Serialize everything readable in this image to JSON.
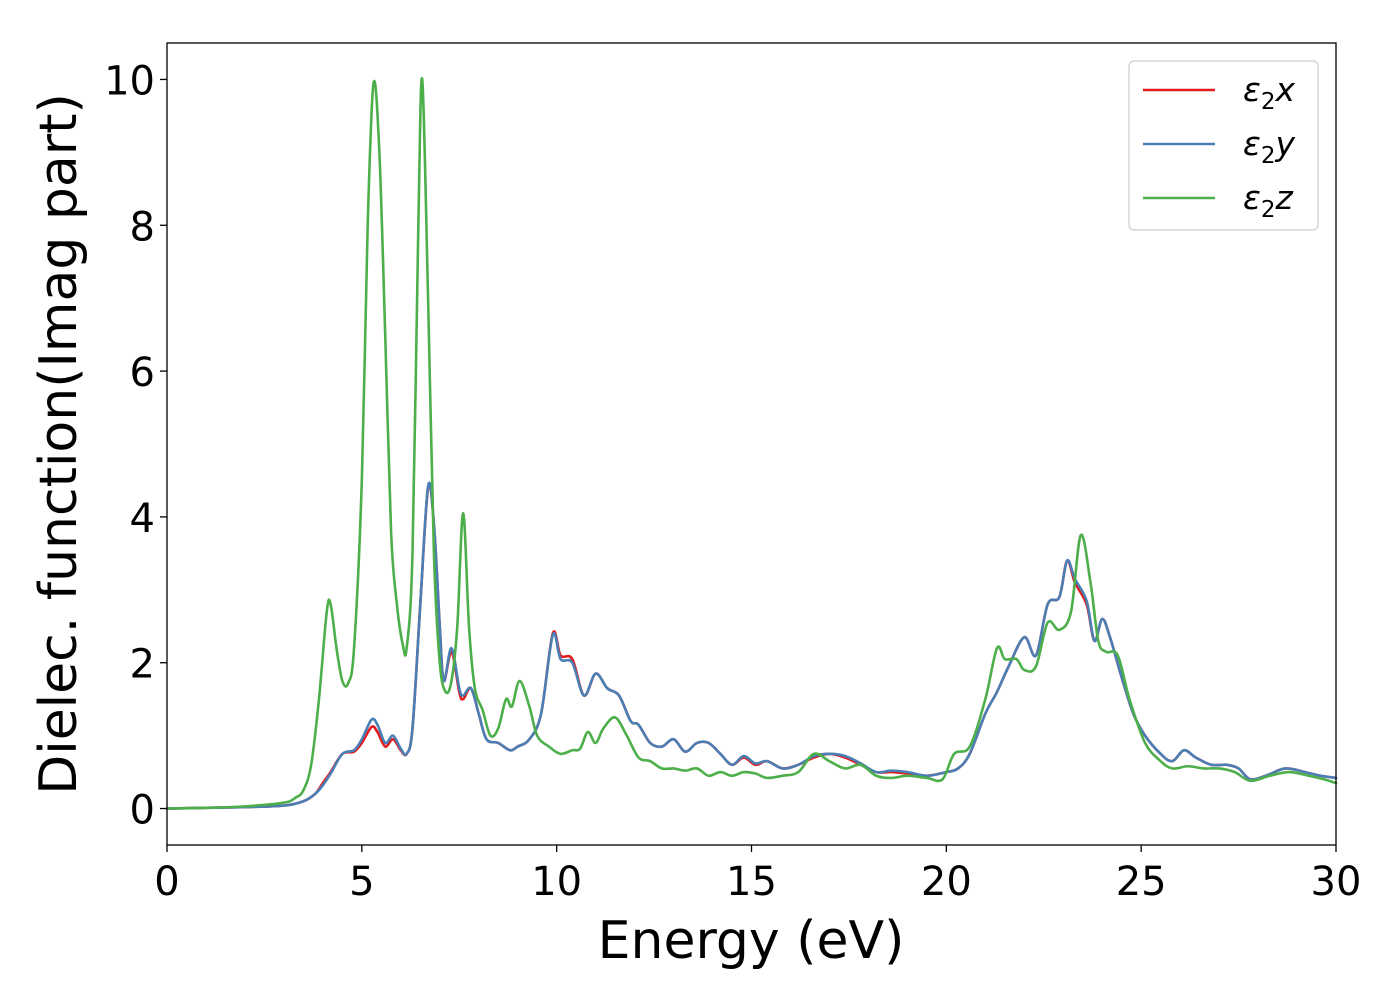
{
  "chart_data": {
    "type": "line",
    "xlabel": "Energy (eV)",
    "ylabel": "Dielec. function(Imag part)",
    "xlim": [
      0,
      30
    ],
    "ylim": [
      -0.5,
      10.5
    ],
    "xticks": [
      "0",
      "5",
      "10",
      "15",
      "20",
      "25",
      "30"
    ],
    "yticks": [
      "0",
      "2",
      "4",
      "6",
      "8",
      "10"
    ],
    "grid": false,
    "legend": "top-right",
    "series": [
      {
        "name": "ε₂x",
        "legend_base": "ε",
        "legend_sub": "2",
        "legend_var": "x",
        "color": "#e41a1c",
        "points": [
          [
            0,
            0
          ],
          [
            1,
            0.01
          ],
          [
            2,
            0.02
          ],
          [
            3,
            0.04
          ],
          [
            3.5,
            0.1
          ],
          [
            3.8,
            0.2
          ],
          [
            4.0,
            0.35
          ],
          [
            4.2,
            0.5
          ],
          [
            4.5,
            0.75
          ],
          [
            4.8,
            0.78
          ],
          [
            5.0,
            0.9
          ],
          [
            5.25,
            1.12
          ],
          [
            5.4,
            1.05
          ],
          [
            5.6,
            0.85
          ],
          [
            5.8,
            0.95
          ],
          [
            6.0,
            0.8
          ],
          [
            6.15,
            0.75
          ],
          [
            6.3,
            1.1
          ],
          [
            6.5,
            2.8
          ],
          [
            6.7,
            4.4
          ],
          [
            6.85,
            3.9
          ],
          [
            7.0,
            2.5
          ],
          [
            7.1,
            1.75
          ],
          [
            7.3,
            2.15
          ],
          [
            7.5,
            1.6
          ],
          [
            7.6,
            1.5
          ],
          [
            7.8,
            1.65
          ],
          [
            8.0,
            1.3
          ],
          [
            8.2,
            0.95
          ],
          [
            8.5,
            0.9
          ],
          [
            8.8,
            0.8
          ],
          [
            9.0,
            0.85
          ],
          [
            9.3,
            0.95
          ],
          [
            9.6,
            1.3
          ],
          [
            9.9,
            2.4
          ],
          [
            10.1,
            2.1
          ],
          [
            10.4,
            2.05
          ],
          [
            10.7,
            1.55
          ],
          [
            11.0,
            1.85
          ],
          [
            11.3,
            1.65
          ],
          [
            11.6,
            1.55
          ],
          [
            11.9,
            1.2
          ],
          [
            12.1,
            1.15
          ],
          [
            12.4,
            0.9
          ],
          [
            12.7,
            0.85
          ],
          [
            13.0,
            0.95
          ],
          [
            13.3,
            0.78
          ],
          [
            13.6,
            0.9
          ],
          [
            13.9,
            0.9
          ],
          [
            14.2,
            0.75
          ],
          [
            14.5,
            0.6
          ],
          [
            14.8,
            0.7
          ],
          [
            15.1,
            0.6
          ],
          [
            15.4,
            0.65
          ],
          [
            15.8,
            0.55
          ],
          [
            16.2,
            0.6
          ],
          [
            16.6,
            0.7
          ],
          [
            17.0,
            0.75
          ],
          [
            17.4,
            0.7
          ],
          [
            17.8,
            0.6
          ],
          [
            18.2,
            0.5
          ],
          [
            18.6,
            0.5
          ],
          [
            19.0,
            0.48
          ],
          [
            19.5,
            0.45
          ],
          [
            20.0,
            0.5
          ],
          [
            20.3,
            0.55
          ],
          [
            20.6,
            0.75
          ],
          [
            21.0,
            1.3
          ],
          [
            21.3,
            1.6
          ],
          [
            21.6,
            1.95
          ],
          [
            22.0,
            2.35
          ],
          [
            22.3,
            2.1
          ],
          [
            22.6,
            2.8
          ],
          [
            22.9,
            2.9
          ],
          [
            23.1,
            3.4
          ],
          [
            23.3,
            3.1
          ],
          [
            23.6,
            2.8
          ],
          [
            23.8,
            2.3
          ],
          [
            24.0,
            2.6
          ],
          [
            24.2,
            2.35
          ],
          [
            24.5,
            1.8
          ],
          [
            24.8,
            1.3
          ],
          [
            25.1,
            1.0
          ],
          [
            25.5,
            0.75
          ],
          [
            25.8,
            0.65
          ],
          [
            26.1,
            0.8
          ],
          [
            26.4,
            0.7
          ],
          [
            26.8,
            0.6
          ],
          [
            27.2,
            0.6
          ],
          [
            27.5,
            0.55
          ],
          [
            27.8,
            0.4
          ],
          [
            28.2,
            0.45
          ],
          [
            28.7,
            0.55
          ],
          [
            29.2,
            0.5
          ],
          [
            29.6,
            0.45
          ],
          [
            30.0,
            0.42
          ]
        ]
      },
      {
        "name": "ε₂y",
        "legend_base": "ε",
        "legend_sub": "2",
        "legend_var": "y",
        "color": "#4a7fb5",
        "points": [
          [
            0,
            0
          ],
          [
            1,
            0.01
          ],
          [
            2,
            0.02
          ],
          [
            3,
            0.04
          ],
          [
            3.5,
            0.1
          ],
          [
            3.8,
            0.2
          ],
          [
            4.0,
            0.32
          ],
          [
            4.2,
            0.48
          ],
          [
            4.5,
            0.75
          ],
          [
            4.8,
            0.8
          ],
          [
            5.0,
            0.95
          ],
          [
            5.25,
            1.22
          ],
          [
            5.4,
            1.15
          ],
          [
            5.6,
            0.9
          ],
          [
            5.8,
            1.0
          ],
          [
            6.0,
            0.82
          ],
          [
            6.15,
            0.75
          ],
          [
            6.3,
            1.1
          ],
          [
            6.5,
            2.8
          ],
          [
            6.7,
            4.42
          ],
          [
            6.85,
            3.9
          ],
          [
            7.0,
            2.5
          ],
          [
            7.1,
            1.75
          ],
          [
            7.3,
            2.2
          ],
          [
            7.5,
            1.65
          ],
          [
            7.6,
            1.55
          ],
          [
            7.8,
            1.65
          ],
          [
            8.0,
            1.3
          ],
          [
            8.2,
            0.95
          ],
          [
            8.5,
            0.9
          ],
          [
            8.8,
            0.8
          ],
          [
            9.0,
            0.85
          ],
          [
            9.3,
            0.95
          ],
          [
            9.6,
            1.3
          ],
          [
            9.9,
            2.38
          ],
          [
            10.1,
            2.05
          ],
          [
            10.4,
            2.0
          ],
          [
            10.7,
            1.55
          ],
          [
            11.0,
            1.85
          ],
          [
            11.3,
            1.65
          ],
          [
            11.6,
            1.55
          ],
          [
            11.9,
            1.2
          ],
          [
            12.1,
            1.15
          ],
          [
            12.4,
            0.9
          ],
          [
            12.7,
            0.85
          ],
          [
            13.0,
            0.95
          ],
          [
            13.3,
            0.78
          ],
          [
            13.6,
            0.9
          ],
          [
            13.9,
            0.9
          ],
          [
            14.2,
            0.75
          ],
          [
            14.5,
            0.6
          ],
          [
            14.8,
            0.72
          ],
          [
            15.1,
            0.62
          ],
          [
            15.4,
            0.65
          ],
          [
            15.8,
            0.55
          ],
          [
            16.2,
            0.6
          ],
          [
            16.6,
            0.72
          ],
          [
            17.0,
            0.75
          ],
          [
            17.4,
            0.72
          ],
          [
            17.8,
            0.62
          ],
          [
            18.2,
            0.5
          ],
          [
            18.6,
            0.52
          ],
          [
            19.0,
            0.5
          ],
          [
            19.5,
            0.45
          ],
          [
            20.0,
            0.5
          ],
          [
            20.3,
            0.55
          ],
          [
            20.6,
            0.75
          ],
          [
            21.0,
            1.3
          ],
          [
            21.3,
            1.6
          ],
          [
            21.6,
            1.95
          ],
          [
            22.0,
            2.35
          ],
          [
            22.3,
            2.1
          ],
          [
            22.6,
            2.8
          ],
          [
            22.9,
            2.9
          ],
          [
            23.1,
            3.4
          ],
          [
            23.3,
            3.15
          ],
          [
            23.6,
            2.85
          ],
          [
            23.8,
            2.3
          ],
          [
            24.0,
            2.6
          ],
          [
            24.2,
            2.35
          ],
          [
            24.5,
            1.8
          ],
          [
            24.8,
            1.3
          ],
          [
            25.1,
            1.0
          ],
          [
            25.5,
            0.75
          ],
          [
            25.8,
            0.65
          ],
          [
            26.1,
            0.8
          ],
          [
            26.4,
            0.7
          ],
          [
            26.8,
            0.6
          ],
          [
            27.2,
            0.6
          ],
          [
            27.5,
            0.55
          ],
          [
            27.8,
            0.4
          ],
          [
            28.2,
            0.45
          ],
          [
            28.7,
            0.55
          ],
          [
            29.2,
            0.5
          ],
          [
            29.6,
            0.45
          ],
          [
            30.0,
            0.42
          ]
        ]
      },
      {
        "name": "ε₂z",
        "legend_base": "ε",
        "legend_sub": "2",
        "legend_var": "z",
        "color": "#4daf4a",
        "points": [
          [
            0,
            0
          ],
          [
            1,
            0.01
          ],
          [
            2,
            0.03
          ],
          [
            3,
            0.08
          ],
          [
            3.3,
            0.15
          ],
          [
            3.5,
            0.25
          ],
          [
            3.7,
            0.6
          ],
          [
            3.9,
            1.5
          ],
          [
            4.1,
            2.7
          ],
          [
            4.2,
            2.8
          ],
          [
            4.35,
            2.2
          ],
          [
            4.5,
            1.75
          ],
          [
            4.65,
            1.72
          ],
          [
            4.8,
            2.2
          ],
          [
            5.0,
            4.5
          ],
          [
            5.15,
            8.0
          ],
          [
            5.3,
            9.95
          ],
          [
            5.45,
            9.0
          ],
          [
            5.6,
            6.5
          ],
          [
            5.75,
            3.8
          ],
          [
            5.9,
            2.8
          ],
          [
            6.05,
            2.25
          ],
          [
            6.15,
            2.2
          ],
          [
            6.3,
            3.5
          ],
          [
            6.45,
            8.0
          ],
          [
            6.55,
            10.0
          ],
          [
            6.7,
            7.0
          ],
          [
            6.85,
            3.5
          ],
          [
            7.0,
            2.0
          ],
          [
            7.15,
            1.6
          ],
          [
            7.3,
            1.75
          ],
          [
            7.45,
            2.5
          ],
          [
            7.6,
            4.05
          ],
          [
            7.75,
            2.5
          ],
          [
            7.9,
            1.65
          ],
          [
            8.1,
            1.35
          ],
          [
            8.3,
            1.0
          ],
          [
            8.5,
            1.1
          ],
          [
            8.7,
            1.5
          ],
          [
            8.85,
            1.4
          ],
          [
            9.05,
            1.75
          ],
          [
            9.3,
            1.4
          ],
          [
            9.5,
            1.0
          ],
          [
            9.8,
            0.85
          ],
          [
            10.1,
            0.75
          ],
          [
            10.4,
            0.8
          ],
          [
            10.6,
            0.82
          ],
          [
            10.8,
            1.05
          ],
          [
            11.0,
            0.9
          ],
          [
            11.2,
            1.1
          ],
          [
            11.5,
            1.25
          ],
          [
            11.8,
            1.0
          ],
          [
            12.1,
            0.7
          ],
          [
            12.4,
            0.65
          ],
          [
            12.7,
            0.55
          ],
          [
            13.0,
            0.55
          ],
          [
            13.3,
            0.52
          ],
          [
            13.6,
            0.55
          ],
          [
            13.9,
            0.45
          ],
          [
            14.2,
            0.5
          ],
          [
            14.5,
            0.45
          ],
          [
            14.8,
            0.5
          ],
          [
            15.1,
            0.48
          ],
          [
            15.4,
            0.42
          ],
          [
            15.8,
            0.45
          ],
          [
            16.2,
            0.5
          ],
          [
            16.6,
            0.75
          ],
          [
            17.0,
            0.65
          ],
          [
            17.4,
            0.55
          ],
          [
            17.8,
            0.6
          ],
          [
            18.2,
            0.45
          ],
          [
            18.6,
            0.42
          ],
          [
            19.0,
            0.45
          ],
          [
            19.5,
            0.42
          ],
          [
            19.9,
            0.4
          ],
          [
            20.2,
            0.75
          ],
          [
            20.6,
            0.85
          ],
          [
            21.0,
            1.5
          ],
          [
            21.3,
            2.2
          ],
          [
            21.5,
            2.05
          ],
          [
            21.8,
            2.05
          ],
          [
            22.0,
            1.9
          ],
          [
            22.3,
            1.95
          ],
          [
            22.6,
            2.55
          ],
          [
            22.9,
            2.45
          ],
          [
            23.2,
            2.7
          ],
          [
            23.45,
            3.75
          ],
          [
            23.7,
            3.1
          ],
          [
            23.9,
            2.3
          ],
          [
            24.1,
            2.15
          ],
          [
            24.4,
            2.1
          ],
          [
            24.7,
            1.5
          ],
          [
            25.1,
            0.9
          ],
          [
            25.5,
            0.65
          ],
          [
            25.8,
            0.55
          ],
          [
            26.2,
            0.58
          ],
          [
            26.6,
            0.55
          ],
          [
            27.0,
            0.55
          ],
          [
            27.4,
            0.5
          ],
          [
            27.8,
            0.38
          ],
          [
            28.3,
            0.45
          ],
          [
            28.8,
            0.5
          ],
          [
            29.3,
            0.45
          ],
          [
            29.7,
            0.4
          ],
          [
            30.0,
            0.35
          ]
        ]
      }
    ]
  }
}
